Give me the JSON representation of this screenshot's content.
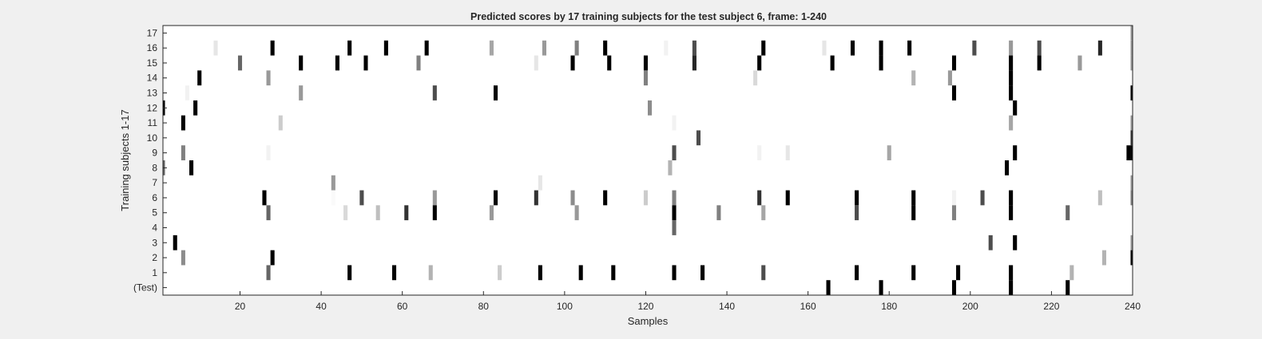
{
  "chart_data": {
    "type": "heatmap",
    "title": "Predicted scores by 17 training subjects for the test subject 6, frame: 1-240",
    "xlabel": "Samples",
    "ylabel": "Training subjects 1-17",
    "xlim": [
      1,
      240
    ],
    "xticks": [
      "20",
      "40",
      "60",
      "80",
      "100",
      "120",
      "140",
      "160",
      "180",
      "200",
      "220",
      "240"
    ],
    "row_labels": [
      "17",
      "16",
      "15",
      "14",
      "13",
      "12",
      "11",
      "10",
      "9",
      "8",
      "7",
      "6",
      "5",
      "4",
      "3",
      "2",
      "1",
      "(Test)"
    ],
    "colormap": "gray (1 = black, 0 = white)",
    "background": "#ffffff",
    "grid": false,
    "rows": [
      {
        "label": "17",
        "cells": [
          [
            240,
            0.4
          ]
        ]
      },
      {
        "label": "16",
        "cells": [
          [
            14,
            0.1
          ],
          [
            28,
            1.0
          ],
          [
            47,
            1.0
          ],
          [
            56,
            1.0
          ],
          [
            66,
            1.0
          ],
          [
            82,
            0.35
          ],
          [
            95,
            0.4
          ],
          [
            103,
            0.5
          ],
          [
            110,
            1.0
          ],
          [
            125,
            0.05
          ],
          [
            132,
            0.7
          ],
          [
            149,
            1.0
          ],
          [
            164,
            0.1
          ],
          [
            171,
            1.0
          ],
          [
            178,
            1.0
          ],
          [
            185,
            1.0
          ],
          [
            201,
            0.7
          ],
          [
            210,
            0.4
          ],
          [
            217,
            0.7
          ],
          [
            232,
            0.85
          ],
          [
            240,
            0.4
          ]
        ]
      },
      {
        "label": "15",
        "cells": [
          [
            20,
            0.6
          ],
          [
            35,
            1.0
          ],
          [
            44,
            1.0
          ],
          [
            51,
            1.0
          ],
          [
            64,
            0.5
          ],
          [
            93,
            0.1
          ],
          [
            102,
            1.0
          ],
          [
            111,
            1.0
          ],
          [
            120,
            1.0
          ],
          [
            132,
            0.85
          ],
          [
            148,
            1.0
          ],
          [
            166,
            1.0
          ],
          [
            178,
            1.0
          ],
          [
            196,
            1.0
          ],
          [
            210,
            1.0
          ],
          [
            217,
            1.0
          ],
          [
            227,
            0.4
          ],
          [
            240,
            0.4
          ]
        ]
      },
      {
        "label": "14",
        "cells": [
          [
            10,
            1.0
          ],
          [
            27,
            0.4
          ],
          [
            120,
            0.5
          ],
          [
            147,
            0.15
          ],
          [
            186,
            0.3
          ],
          [
            195,
            0.4
          ],
          [
            210,
            1.0
          ]
        ]
      },
      {
        "label": "13",
        "cells": [
          [
            7,
            0.05
          ],
          [
            35,
            0.4
          ],
          [
            68,
            0.7
          ],
          [
            83,
            1.0
          ],
          [
            196,
            1.0
          ],
          [
            210,
            1.0
          ],
          [
            240,
            1.0
          ]
        ]
      },
      {
        "label": "12",
        "cells": [
          [
            1,
            1.0
          ],
          [
            9,
            1.0
          ],
          [
            121,
            0.45
          ],
          [
            211,
            1.0
          ]
        ]
      },
      {
        "label": "11",
        "cells": [
          [
            6,
            1.0
          ],
          [
            30,
            0.2
          ],
          [
            127,
            0.05
          ],
          [
            210,
            0.35
          ],
          [
            240,
            0.4
          ]
        ]
      },
      {
        "label": "10",
        "cells": [
          [
            133,
            0.7
          ],
          [
            240,
            0.8
          ]
        ]
      },
      {
        "label": "9",
        "cells": [
          [
            6,
            0.5
          ],
          [
            27,
            0.05
          ],
          [
            127,
            0.7
          ],
          [
            148,
            0.05
          ],
          [
            155,
            0.1
          ],
          [
            180,
            0.35
          ],
          [
            211,
            1.0
          ],
          [
            239,
            1.0
          ],
          [
            240,
            1.0
          ]
        ]
      },
      {
        "label": "8",
        "cells": [
          [
            1,
            0.6
          ],
          [
            8,
            1.0
          ],
          [
            126,
            0.3
          ],
          [
            209,
            1.0
          ]
        ]
      },
      {
        "label": "7",
        "cells": [
          [
            43,
            0.4
          ],
          [
            94,
            0.1
          ],
          [
            240,
            0.4
          ]
        ]
      },
      {
        "label": "6",
        "cells": [
          [
            26,
            1.0
          ],
          [
            43,
            0.02
          ],
          [
            50,
            0.7
          ],
          [
            68,
            0.4
          ],
          [
            83,
            1.0
          ],
          [
            93,
            0.8
          ],
          [
            102,
            0.45
          ],
          [
            110,
            1.0
          ],
          [
            120,
            0.2
          ],
          [
            127,
            0.5
          ],
          [
            148,
            0.8
          ],
          [
            155,
            1.0
          ],
          [
            172,
            1.0
          ],
          [
            186,
            1.0
          ],
          [
            196,
            0.05
          ],
          [
            203,
            0.7
          ],
          [
            210,
            1.0
          ],
          [
            232,
            0.25
          ],
          [
            240,
            0.5
          ]
        ]
      },
      {
        "label": "5",
        "cells": [
          [
            27,
            0.6
          ],
          [
            46,
            0.15
          ],
          [
            54,
            0.25
          ],
          [
            61,
            0.8
          ],
          [
            68,
            1.0
          ],
          [
            82,
            0.4
          ],
          [
            103,
            0.4
          ],
          [
            127,
            1.0
          ],
          [
            138,
            0.5
          ],
          [
            149,
            0.35
          ],
          [
            172,
            0.7
          ],
          [
            186,
            1.0
          ],
          [
            196,
            0.5
          ],
          [
            210,
            1.0
          ],
          [
            224,
            0.6
          ]
        ]
      },
      {
        "label": "4",
        "cells": [
          [
            127,
            0.6
          ]
        ]
      },
      {
        "label": "3",
        "cells": [
          [
            4,
            1.0
          ],
          [
            205,
            0.7
          ],
          [
            211,
            1.0
          ],
          [
            240,
            0.4
          ]
        ]
      },
      {
        "label": "2",
        "cells": [
          [
            6,
            0.45
          ],
          [
            28,
            1.0
          ],
          [
            233,
            0.3
          ],
          [
            240,
            1.0
          ]
        ]
      },
      {
        "label": "1",
        "cells": [
          [
            27,
            0.6
          ],
          [
            47,
            1.0
          ],
          [
            58,
            1.0
          ],
          [
            67,
            0.3
          ],
          [
            84,
            0.2
          ],
          [
            94,
            1.0
          ],
          [
            104,
            1.0
          ],
          [
            112,
            1.0
          ],
          [
            127,
            1.0
          ],
          [
            134,
            1.0
          ],
          [
            149,
            0.7
          ],
          [
            172,
            1.0
          ],
          [
            186,
            1.0
          ],
          [
            197,
            1.0
          ],
          [
            210,
            1.0
          ],
          [
            225,
            0.3
          ]
        ]
      },
      {
        "label": "(Test)",
        "cells": [
          [
            165,
            1.0
          ],
          [
            178,
            1.0
          ],
          [
            196,
            1.0
          ],
          [
            210,
            1.0
          ],
          [
            224,
            1.0
          ]
        ]
      }
    ]
  }
}
